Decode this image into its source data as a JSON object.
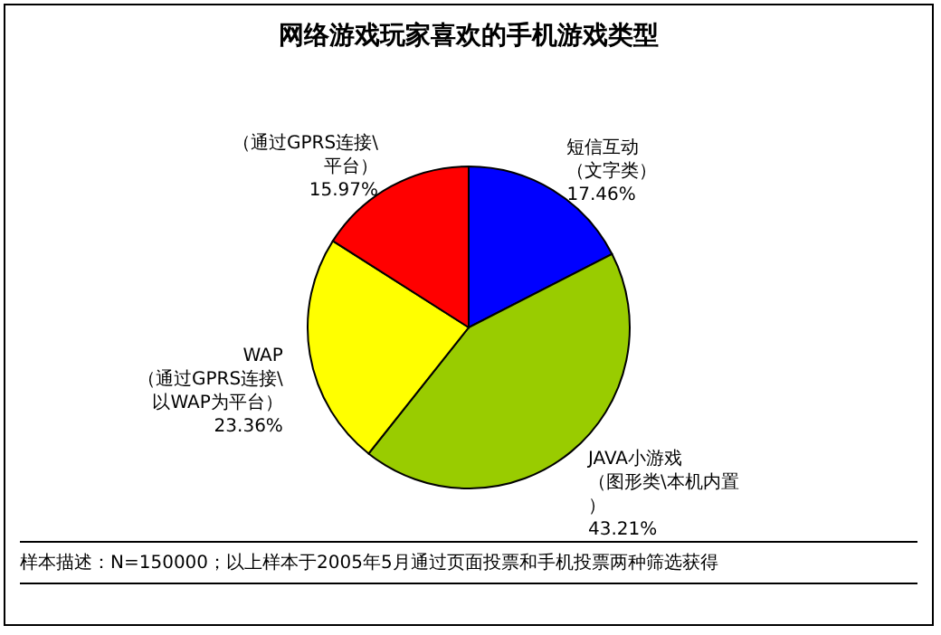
{
  "chart_data": {
    "type": "pie",
    "title": "网络游戏玩家喜欢的手机游戏类型",
    "categories": [
      "短信互动（文字类）",
      "JAVA小游戏（图形类\\本机内置）",
      "WAP（通过GPRS连接\\以WAP为平台）",
      "（通过GPRS连接\\平台）"
    ],
    "values": [
      17.46,
      43.21,
      23.36,
      15.97
    ],
    "value_labels": [
      "17.46%",
      "43.21%",
      "23.36%",
      "15.97%"
    ],
    "colors": [
      "#0000ff",
      "#99cc00",
      "#ffff00",
      "#ff0000"
    ],
    "annotations": [
      "样本描述：N=150000；以上样本于2005年5月通过页面投票和手机投票两种筛选获得"
    ]
  }
}
